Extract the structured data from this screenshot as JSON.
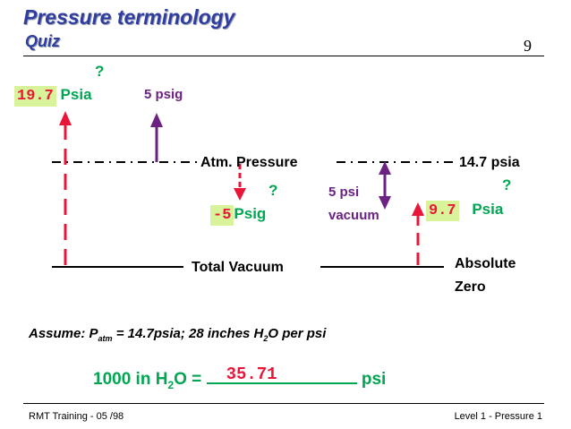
{
  "slide": {
    "title": "Pressure terminology",
    "subtitle": "Quiz",
    "page_number": "9"
  },
  "diagram": {
    "top_left": {
      "question": "?",
      "value": "19.7",
      "unit": "Psia"
    },
    "psig_label": "5 psig",
    "atm_label": "Atm. Pressure",
    "atm_value": "14.7 psia",
    "mid": {
      "question": "?",
      "value": "-5",
      "unit": "Psig"
    },
    "vacuum_label_line1": "5 psi",
    "vacuum_label_line2": "vacuum",
    "right": {
      "question": "?",
      "value": "9.7",
      "unit": "Psia"
    },
    "total_vacuum": "Total Vacuum",
    "absolute_zero_line1": "Absolute",
    "absolute_zero_line2": "Zero"
  },
  "assume": {
    "prefix": "Assume:  P",
    "sub": "atm",
    "middle": " = 14.7psia; 28 inches H",
    "sub2": "2",
    "suffix": "O per psi"
  },
  "equation": {
    "left": "1000 in H",
    "sub": "2",
    "middle": "O = ",
    "answer": "35.71",
    "unit": " psi"
  },
  "footer": {
    "left": "RMT Training  -  05 /98",
    "right": "Level 1 - Pressure 1"
  },
  "colors": {
    "title": "#2f3da0",
    "green": "#00a651",
    "purple": "#6b2283",
    "red": "#e8173a",
    "highlight": "#d8f39a"
  }
}
